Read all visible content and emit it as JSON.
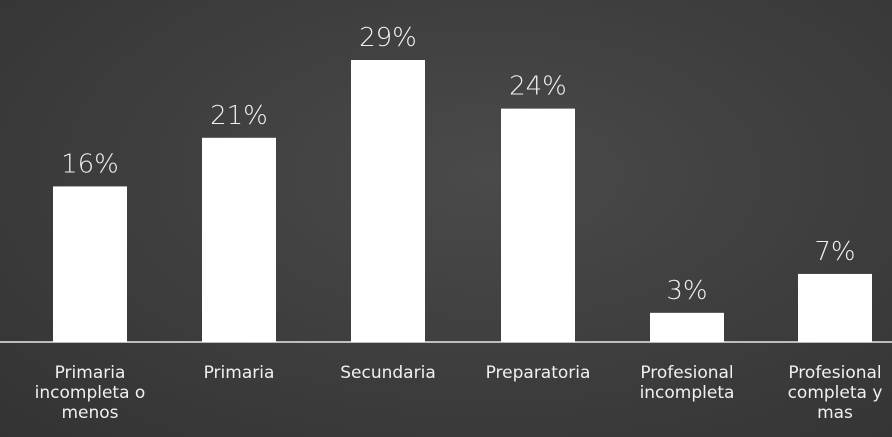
{
  "chart_data": {
    "type": "bar",
    "categories": [
      [
        "Primaria",
        "incompleta o",
        "menos"
      ],
      [
        "Primaria"
      ],
      [
        "Secundaria"
      ],
      [
        "Preparatoria"
      ],
      [
        "Profesional",
        "incompleta"
      ],
      [
        "Profesional",
        "completa y",
        "mas"
      ]
    ],
    "values": [
      16,
      21,
      29,
      24,
      3,
      7
    ],
    "value_labels": [
      "16%",
      "21%",
      "29%",
      "24%",
      "3%",
      "7%"
    ],
    "unit": "%",
    "ylim": [
      0,
      29
    ],
    "title": "",
    "xlabel": "",
    "ylabel": "",
    "grid": false,
    "legend": "none",
    "colors": {
      "background": "#3b3b3b",
      "bar": "#ffffff",
      "text": "#f0f0f0"
    }
  }
}
